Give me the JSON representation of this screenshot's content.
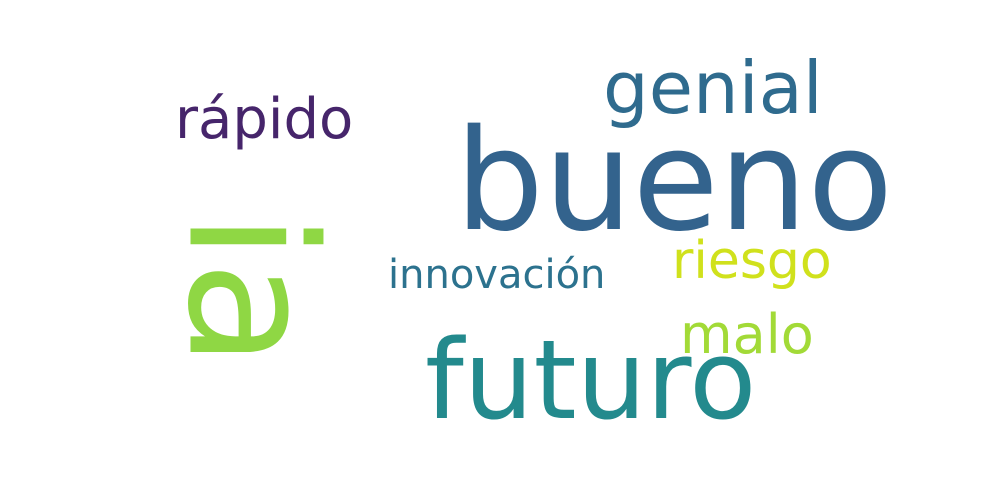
{
  "words": [
    {
      "key": "ia",
      "text": "ia",
      "color": "#8fd744"
    },
    {
      "key": "bueno",
      "text": "bueno",
      "color": "#33638d"
    },
    {
      "key": "futuro",
      "text": "futuro",
      "color": "#238a8d"
    },
    {
      "key": "genial",
      "text": "genial",
      "color": "#2f6b8e"
    },
    {
      "key": "rapido",
      "text": "rápido",
      "color": "#46256b"
    },
    {
      "key": "riesgo",
      "text": "riesgo",
      "color": "#d0e11c"
    },
    {
      "key": "malo",
      "text": "malo",
      "color": "#a2da37"
    },
    {
      "key": "innovacion",
      "text": "innovación",
      "color": "#2c728e"
    }
  ]
}
